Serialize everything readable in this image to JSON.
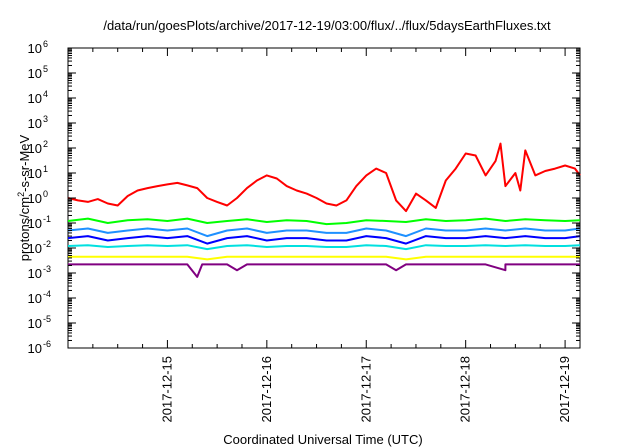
{
  "chart_data": {
    "type": "line",
    "title": "/data/run/goesPlots/archive/2017-12-19/03:00/flux/../flux/5daysEarthFluxes.txt",
    "xlabel": "Coordinated Universal Time (UTC)",
    "ylabel": {
      "base": "protons/cm",
      "sup": "2",
      "rest": "-s-sr-MeV"
    },
    "yscale": "log",
    "ylim_exponents": [
      -6,
      6
    ],
    "ytick_labels": [
      {
        "base": "10",
        "exp": "-6"
      },
      {
        "base": "10",
        "exp": "-5"
      },
      {
        "base": "10",
        "exp": "-4"
      },
      {
        "base": "10",
        "exp": "-3"
      },
      {
        "base": "10",
        "exp": "-2"
      },
      {
        "base": "10",
        "exp": "-1"
      },
      {
        "base": "10",
        "exp": "0"
      },
      {
        "base": "10",
        "exp": "1"
      },
      {
        "base": "10",
        "exp": "2"
      },
      {
        "base": "10",
        "exp": "3"
      },
      {
        "base": "10",
        "exp": "4"
      },
      {
        "base": "10",
        "exp": "5"
      },
      {
        "base": "10",
        "exp": "6"
      }
    ],
    "xlim_days": [
      14.0,
      19.15
    ],
    "x_tick_labels": [
      {
        "label": "2017-12-15",
        "day": 15
      },
      {
        "label": "2017-12-16",
        "day": 16
      },
      {
        "label": "2017-12-17",
        "day": 17
      },
      {
        "label": "2017-12-18",
        "day": 18
      },
      {
        "label": "2017-12-19",
        "day": 19
      }
    ],
    "grid": false,
    "series": [
      {
        "color": "#ff0000",
        "x": [
          14.0,
          14.1,
          14.2,
          14.3,
          14.4,
          14.5,
          14.6,
          14.7,
          14.8,
          14.9,
          15.0,
          15.1,
          15.2,
          15.3,
          15.4,
          15.5,
          15.6,
          15.7,
          15.8,
          15.9,
          16.0,
          16.1,
          16.2,
          16.3,
          16.4,
          16.5,
          16.6,
          16.7,
          16.8,
          16.9,
          17.0,
          17.1,
          17.2,
          17.3,
          17.4,
          17.5,
          17.6,
          17.7,
          17.8,
          17.9,
          18.0,
          18.1,
          18.2,
          18.3,
          18.35,
          18.4,
          18.5,
          18.55,
          18.6,
          18.7,
          18.8,
          18.9,
          19.0,
          19.1,
          19.15
        ],
        "y": [
          1.0,
          0.8,
          0.7,
          0.9,
          0.6,
          0.5,
          1.2,
          2.0,
          2.5,
          3.0,
          3.5,
          4.0,
          3.2,
          2.5,
          1.0,
          0.7,
          0.5,
          1.0,
          2.5,
          5.0,
          8.0,
          6.0,
          3.0,
          2.0,
          1.5,
          1.0,
          0.6,
          0.5,
          0.8,
          3.0,
          8.0,
          15.0,
          10.0,
          0.8,
          0.3,
          1.5,
          0.8,
          0.4,
          5.0,
          15.0,
          60.0,
          50.0,
          8.0,
          30.0,
          150.0,
          3.0,
          10.0,
          2.0,
          80.0,
          8.0,
          12.0,
          15.0,
          20.0,
          15.0,
          8.0
        ]
      },
      {
        "color": "#00ff00",
        "x": [
          14.0,
          14.2,
          14.4,
          14.6,
          14.8,
          15.0,
          15.2,
          15.4,
          15.6,
          15.8,
          16.0,
          16.2,
          16.4,
          16.6,
          16.8,
          17.0,
          17.2,
          17.4,
          17.6,
          17.8,
          18.0,
          18.2,
          18.4,
          18.6,
          18.8,
          19.0,
          19.15
        ],
        "y": [
          0.12,
          0.15,
          0.1,
          0.13,
          0.14,
          0.12,
          0.15,
          0.1,
          0.12,
          0.14,
          0.11,
          0.13,
          0.12,
          0.09,
          0.1,
          0.13,
          0.12,
          0.11,
          0.14,
          0.12,
          0.13,
          0.15,
          0.12,
          0.14,
          0.13,
          0.12,
          0.13
        ]
      },
      {
        "color": "#1e90ff",
        "x": [
          14.0,
          14.2,
          14.4,
          14.6,
          14.8,
          15.0,
          15.2,
          15.4,
          15.6,
          15.8,
          16.0,
          16.2,
          16.4,
          16.6,
          16.8,
          17.0,
          17.2,
          17.4,
          17.6,
          17.8,
          18.0,
          18.2,
          18.4,
          18.6,
          18.8,
          19.0,
          19.15
        ],
        "y": [
          0.05,
          0.06,
          0.04,
          0.05,
          0.06,
          0.05,
          0.06,
          0.03,
          0.05,
          0.06,
          0.04,
          0.05,
          0.05,
          0.04,
          0.04,
          0.06,
          0.05,
          0.03,
          0.06,
          0.05,
          0.05,
          0.06,
          0.05,
          0.06,
          0.05,
          0.05,
          0.06
        ]
      },
      {
        "color": "#0000ff",
        "x": [
          14.0,
          14.2,
          14.4,
          14.6,
          14.8,
          15.0,
          15.2,
          15.4,
          15.6,
          15.8,
          16.0,
          16.2,
          16.4,
          16.6,
          16.8,
          17.0,
          17.2,
          17.4,
          17.6,
          17.8,
          18.0,
          18.2,
          18.4,
          18.6,
          18.8,
          19.0,
          19.15
        ],
        "y": [
          0.025,
          0.03,
          0.02,
          0.025,
          0.03,
          0.025,
          0.03,
          0.015,
          0.025,
          0.03,
          0.02,
          0.025,
          0.025,
          0.02,
          0.02,
          0.03,
          0.025,
          0.015,
          0.03,
          0.025,
          0.025,
          0.03,
          0.025,
          0.03,
          0.025,
          0.025,
          0.03
        ]
      },
      {
        "color": "#00e0e0",
        "x": [
          14.0,
          14.2,
          14.4,
          14.6,
          14.8,
          15.0,
          15.2,
          15.4,
          15.6,
          15.8,
          16.0,
          16.2,
          16.4,
          16.6,
          16.8,
          17.0,
          17.2,
          17.4,
          17.6,
          17.8,
          18.0,
          18.2,
          18.4,
          18.6,
          18.8,
          19.0,
          19.15
        ],
        "y": [
          0.012,
          0.013,
          0.011,
          0.012,
          0.013,
          0.012,
          0.013,
          0.009,
          0.012,
          0.013,
          0.011,
          0.012,
          0.012,
          0.011,
          0.011,
          0.013,
          0.012,
          0.009,
          0.013,
          0.012,
          0.012,
          0.013,
          0.012,
          0.013,
          0.012,
          0.012,
          0.013
        ]
      },
      {
        "color": "#ffff00",
        "x": [
          14.0,
          14.2,
          14.4,
          14.6,
          14.8,
          15.0,
          15.2,
          15.4,
          15.6,
          15.8,
          16.0,
          16.2,
          16.4,
          16.6,
          16.8,
          17.0,
          17.2,
          17.4,
          17.6,
          17.8,
          18.0,
          18.2,
          18.4,
          18.6,
          18.8,
          19.0,
          19.15
        ],
        "y": [
          0.0045,
          0.0045,
          0.0045,
          0.0045,
          0.0045,
          0.0045,
          0.0045,
          0.0035,
          0.0045,
          0.0045,
          0.0045,
          0.0045,
          0.0045,
          0.0045,
          0.0045,
          0.0045,
          0.0045,
          0.0035,
          0.0045,
          0.0045,
          0.0045,
          0.0045,
          0.0045,
          0.0045,
          0.0045,
          0.0045,
          0.0045
        ]
      },
      {
        "color": "#800080",
        "x": [
          14.0,
          14.2,
          14.4,
          14.6,
          14.8,
          15.0,
          15.2,
          15.3,
          15.35,
          15.4,
          15.6,
          15.7,
          15.8,
          16.0,
          16.2,
          16.4,
          16.6,
          16.8,
          17.0,
          17.2,
          17.3,
          17.4,
          17.6,
          17.8,
          18.0,
          18.2,
          18.4,
          18.4,
          18.6,
          18.8,
          19.0,
          19.15
        ],
        "y": [
          0.0022,
          0.0022,
          0.0022,
          0.0022,
          0.0022,
          0.0022,
          0.0022,
          0.0007,
          0.0022,
          0.0022,
          0.0022,
          0.0013,
          0.0022,
          0.0022,
          0.0022,
          0.0022,
          0.0022,
          0.0022,
          0.0022,
          0.0022,
          0.0013,
          0.0022,
          0.0022,
          0.0022,
          0.0022,
          0.0022,
          0.0013,
          0.0022,
          0.0022,
          0.0022,
          0.0022,
          0.0022
        ]
      }
    ]
  }
}
